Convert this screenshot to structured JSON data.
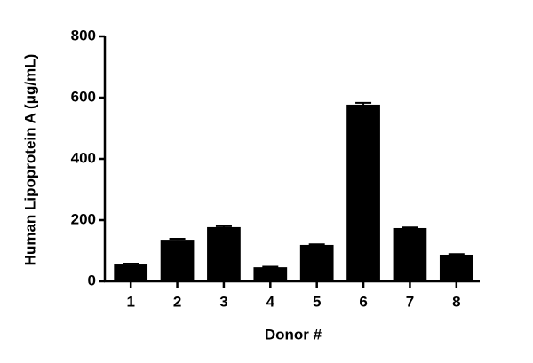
{
  "chart_data": {
    "type": "bar",
    "x_label": "Donor #",
    "y_label": "Human Lipoprotein A (μg/mL)",
    "categories": [
      "1",
      "2",
      "3",
      "4",
      "5",
      "6",
      "7",
      "8"
    ],
    "values": [
      55,
      136,
      177,
      46,
      119,
      577,
      174,
      87
    ],
    "errors": [
      3,
      3,
      3,
      2,
      2,
      6,
      2,
      2
    ],
    "color": "#000000",
    "ylim": [
      0,
      800
    ],
    "yticks": [
      0,
      200,
      400,
      600,
      800
    ],
    "grid": false
  }
}
